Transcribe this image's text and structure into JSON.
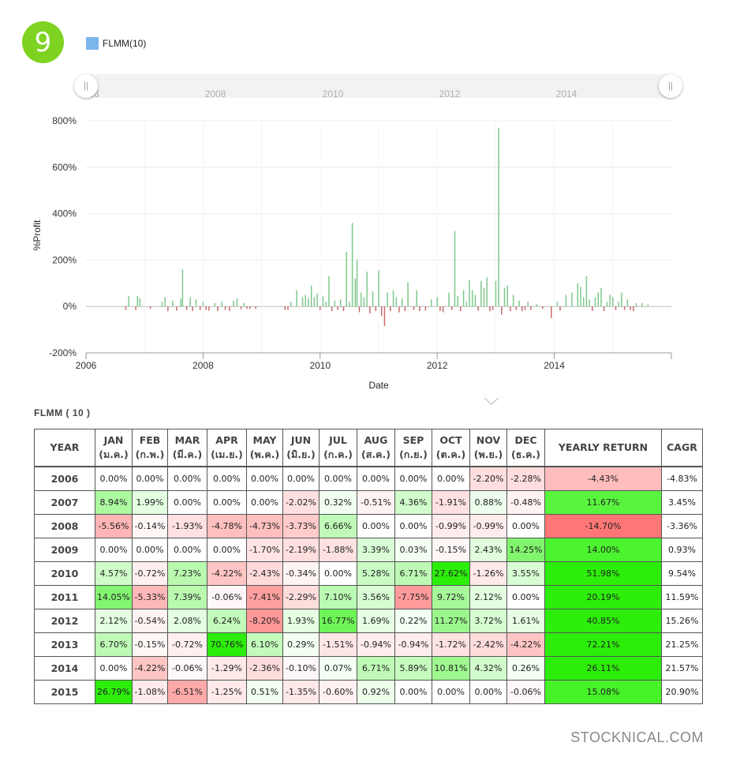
{
  "badge": {
    "number": "9"
  },
  "legend": {
    "label": "FLMM(10)",
    "color": "#7cb5ec"
  },
  "navigator": {
    "labels": [
      "2006",
      "2008",
      "2010",
      "2012",
      "2014"
    ]
  },
  "chart_data": {
    "type": "bar",
    "ylabel": "%Profit",
    "xlabel": "Date",
    "ylim": [
      -200,
      800
    ],
    "yticks": [
      "800%",
      "600%",
      "400%",
      "200%",
      "0%",
      "-200%"
    ],
    "ytick_values": [
      800,
      600,
      400,
      200,
      0,
      -200
    ],
    "xlim": [
      2006.0,
      2016.0
    ],
    "xticks": [
      "2006",
      "2008",
      "2010",
      "2012",
      "2014"
    ],
    "xtick_values": [
      2006,
      2008,
      2010,
      2012,
      2014
    ],
    "grid": true,
    "colors": {
      "positive": "#7fc88c",
      "negative": "#c96b6b"
    },
    "series": [
      {
        "name": "FLMM(10)",
        "x": [
          2006.68,
          2006.73,
          2006.85,
          2006.88,
          2006.92,
          2007.1,
          2007.3,
          2007.35,
          2007.4,
          2007.48,
          2007.55,
          2007.62,
          2007.65,
          2007.72,
          2007.78,
          2007.82,
          2007.88,
          2007.95,
          2008.0,
          2008.05,
          2008.1,
          2008.2,
          2008.25,
          2008.32,
          2008.38,
          2008.45,
          2008.52,
          2008.58,
          2008.65,
          2008.7,
          2008.75,
          2008.8,
          2008.9,
          2009.4,
          2009.45,
          2009.5,
          2009.6,
          2009.7,
          2009.75,
          2009.8,
          2009.85,
          2009.9,
          2009.95,
          2010.0,
          2010.05,
          2010.1,
          2010.15,
          2010.2,
          2010.25,
          2010.3,
          2010.35,
          2010.4,
          2010.45,
          2010.5,
          2010.55,
          2010.6,
          2010.63,
          2010.67,
          2010.7,
          2010.75,
          2010.8,
          2010.85,
          2010.9,
          2010.95,
          2011.0,
          2011.05,
          2011.1,
          2011.15,
          2011.2,
          2011.25,
          2011.3,
          2011.35,
          2011.4,
          2011.45,
          2011.5,
          2011.6,
          2011.65,
          2011.7,
          2011.8,
          2011.9,
          2012.0,
          2012.05,
          2012.1,
          2012.2,
          2012.25,
          2012.3,
          2012.35,
          2012.4,
          2012.45,
          2012.5,
          2012.55,
          2012.6,
          2012.65,
          2012.7,
          2012.75,
          2012.8,
          2012.85,
          2012.9,
          2012.95,
          2013.0,
          2013.05,
          2013.1,
          2013.15,
          2013.2,
          2013.25,
          2013.3,
          2013.35,
          2013.4,
          2013.45,
          2013.5,
          2013.55,
          2013.6,
          2013.7,
          2013.8,
          2013.95,
          2014.05,
          2014.1,
          2014.2,
          2014.3,
          2014.4,
          2014.45,
          2014.5,
          2014.55,
          2014.6,
          2014.65,
          2014.7,
          2014.75,
          2014.8,
          2014.85,
          2014.9,
          2014.95,
          2015.0,
          2015.05,
          2015.1,
          2015.15,
          2015.2,
          2015.25,
          2015.3,
          2015.35,
          2015.4,
          2015.5,
          2015.6
        ],
        "values": [
          -15,
          45,
          -15,
          45,
          35,
          -10,
          20,
          40,
          -20,
          25,
          -18,
          35,
          160,
          -15,
          40,
          -20,
          30,
          -15,
          20,
          -15,
          -18,
          15,
          -20,
          20,
          -15,
          -20,
          25,
          35,
          -12,
          15,
          -10,
          -10,
          -10,
          -15,
          -15,
          20,
          70,
          40,
          50,
          35,
          90,
          40,
          55,
          -15,
          45,
          20,
          130,
          -20,
          25,
          -15,
          30,
          -20,
          235,
          20,
          360,
          120,
          200,
          -25,
          60,
          40,
          150,
          -30,
          65,
          -20,
          155,
          -40,
          -85,
          60,
          -20,
          70,
          40,
          -25,
          35,
          -20,
          105,
          -15,
          70,
          -20,
          -18,
          30,
          40,
          -20,
          -25,
          60,
          -15,
          325,
          45,
          -20,
          70,
          20,
          115,
          70,
          50,
          -18,
          110,
          80,
          125,
          -20,
          -15,
          110,
          770,
          -35,
          80,
          90,
          -20,
          50,
          -15,
          25,
          -20,
          -15,
          20,
          -15,
          10,
          -10,
          -50,
          20,
          -18,
          50,
          60,
          100,
          85,
          40,
          130,
          30,
          -20,
          40,
          60,
          80,
          -20,
          20,
          50,
          40,
          -15,
          20,
          60,
          -15,
          30,
          -15,
          -20,
          15,
          15,
          10
        ]
      }
    ]
  },
  "table": {
    "title": "FLMM ( 10 )",
    "headers": [
      {
        "name": "YEAR",
        "sub": ""
      },
      {
        "name": "JAN",
        "sub": "(ม.ค.)"
      },
      {
        "name": "FEB",
        "sub": "(ก.พ.)"
      },
      {
        "name": "MAR",
        "sub": "(มี.ค.)"
      },
      {
        "name": "APR",
        "sub": "(เม.ย.)"
      },
      {
        "name": "MAY",
        "sub": "(พ.ค.)"
      },
      {
        "name": "JUN",
        "sub": "(มิ.ย.)"
      },
      {
        "name": "JUL",
        "sub": "(ก.ค.)"
      },
      {
        "name": "AUG",
        "sub": "(ส.ค.)"
      },
      {
        "name": "SEP",
        "sub": "(ก.ย.)"
      },
      {
        "name": "OCT",
        "sub": "(ต.ค.)"
      },
      {
        "name": "NOV",
        "sub": "(พ.ย.)"
      },
      {
        "name": "DEC",
        "sub": "(ธ.ค.)"
      },
      {
        "name": "YEARLY RETURN",
        "sub": ""
      },
      {
        "name": "CAGR",
        "sub": ""
      }
    ],
    "rows": [
      {
        "year": "2006",
        "cells": [
          "0.00%",
          "0.00%",
          "0.00%",
          "0.00%",
          "0.00%",
          "0.00%",
          "0.00%",
          "0.00%",
          "0.00%",
          "0.00%",
          "-2.20%",
          "-2.28%",
          "-4.43%",
          "-4.83%"
        ]
      },
      {
        "year": "2007",
        "cells": [
          "8.94%",
          "1.99%",
          "0.00%",
          "0.00%",
          "0.00%",
          "-2.02%",
          "0.32%",
          "-0.51%",
          "4.36%",
          "-1.91%",
          "0.88%",
          "-0.48%",
          "11.67%",
          "3.45%"
        ]
      },
      {
        "year": "2008",
        "cells": [
          "-5.56%",
          "-0.14%",
          "-1.93%",
          "-4.78%",
          "-4.73%",
          "-3.73%",
          "6.66%",
          "0.00%",
          "0.00%",
          "-0.99%",
          "-0.99%",
          "0.00%",
          "-14.70%",
          "-3.36%"
        ]
      },
      {
        "year": "2009",
        "cells": [
          "0.00%",
          "0.00%",
          "0.00%",
          "0.00%",
          "-1.70%",
          "-2.19%",
          "-1.88%",
          "3.39%",
          "0.03%",
          "-0.15%",
          "2.43%",
          "14.25%",
          "14.00%",
          "0.93%"
        ]
      },
      {
        "year": "2010",
        "cells": [
          "4.57%",
          "-0.72%",
          "7.23%",
          "-4.22%",
          "-2.43%",
          "-0.34%",
          "0.00%",
          "5.28%",
          "6.71%",
          "27.62%",
          "-1.26%",
          "3.55%",
          "51.98%",
          "9.54%"
        ]
      },
      {
        "year": "2011",
        "cells": [
          "14.05%",
          "-5.33%",
          "7.39%",
          "-0.06%",
          "-7.41%",
          "-2.29%",
          "7.10%",
          "3.56%",
          "-7.75%",
          "9.72%",
          "2.12%",
          "0.00%",
          "20.19%",
          "11.59%"
        ]
      },
      {
        "year": "2012",
        "cells": [
          "2.12%",
          "-0.54%",
          "2.08%",
          "6.24%",
          "-8.20%",
          "1.93%",
          "16.77%",
          "1.69%",
          "0.22%",
          "11.27%",
          "3.72%",
          "1.61%",
          "40.85%",
          "15.26%"
        ]
      },
      {
        "year": "2013",
        "cells": [
          "6.70%",
          "-0.15%",
          "-0.72%",
          "70.76%",
          "6.10%",
          "0.29%",
          "-1.51%",
          "-0.94%",
          "-0.94%",
          "-1.72%",
          "-2.42%",
          "-4.22%",
          "72.21%",
          "21.25%"
        ]
      },
      {
        "year": "2014",
        "cells": [
          "0.00%",
          "-4.22%",
          "-0.06%",
          "-1.29%",
          "-2.36%",
          "-0.10%",
          "0.07%",
          "6.71%",
          "5.89%",
          "10.81%",
          "4.32%",
          "0.26%",
          "26.11%",
          "21.57%"
        ]
      },
      {
        "year": "2015",
        "cells": [
          "26.79%",
          "-1.08%",
          "-6.51%",
          "-1.25%",
          "0.51%",
          "-1.35%",
          "-0.60%",
          "0.92%",
          "0.00%",
          "0.00%",
          "0.00%",
          "-0.06%",
          "15.08%",
          "20.90%"
        ]
      }
    ]
  },
  "footer": {
    "brand": "STOCKNICAL.COM"
  }
}
